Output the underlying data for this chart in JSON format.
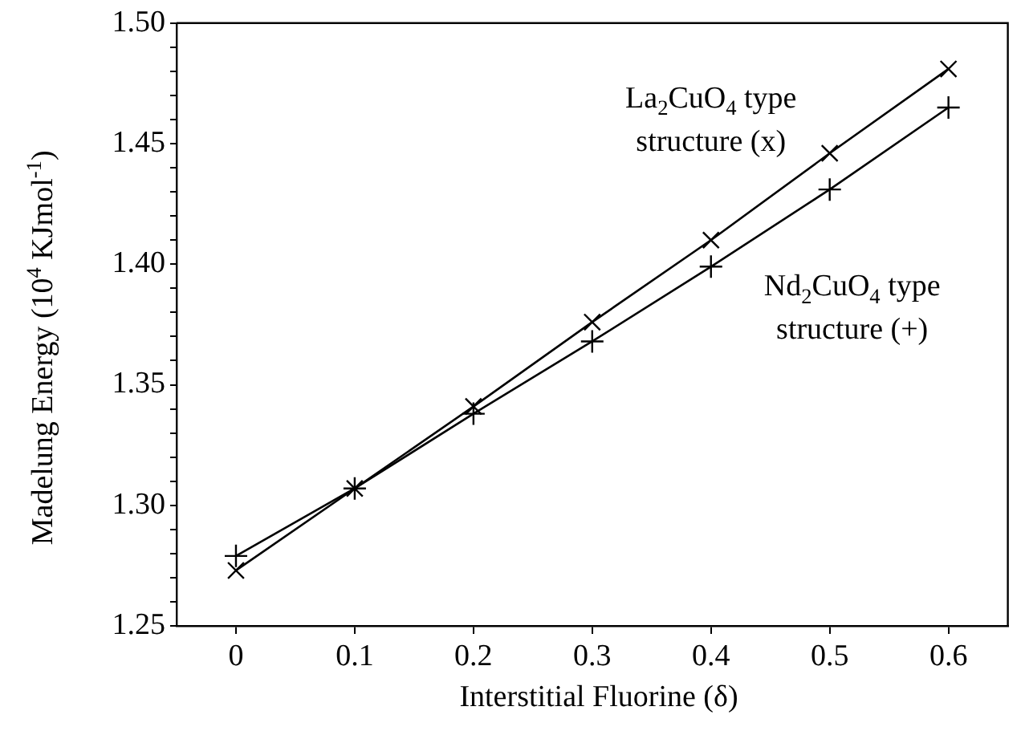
{
  "chart_data": {
    "type": "line",
    "xlabel": "Interstitial Fluorine (δ)",
    "ylabel": "Madelung Energy (10$^{4}$ KJmol$^{-1}$)",
    "x": [
      0,
      0.1,
      0.2,
      0.3,
      0.4,
      0.5,
      0.6
    ],
    "series": [
      {
        "name": "La$_{2}$CuO$_{4}$ type structure (x)",
        "color": "#000000",
        "marker": "cross",
        "values": [
          1.273,
          1.307,
          1.341,
          1.376,
          1.41,
          1.446,
          1.481
        ]
      },
      {
        "name": "Nd$_{2}$CuO$_{4}$ type structure (+)",
        "color": "#000000",
        "marker": "plus",
        "values": [
          1.279,
          1.307,
          1.338,
          1.368,
          1.399,
          1.431,
          1.465
        ]
      }
    ],
    "xlim": [
      -0.05,
      0.65
    ],
    "xticks": [
      0,
      0.1,
      0.2,
      0.3,
      0.4,
      0.5,
      0.6
    ],
    "ylim": [
      1.25,
      1.5
    ],
    "yticks": [
      {
        "value": 1.25,
        "label": "1.25"
      },
      {
        "value": 1.26,
        "label": null
      },
      {
        "value": 1.27,
        "label": null
      },
      {
        "value": 1.28,
        "label": null
      },
      {
        "value": 1.29,
        "label": null
      },
      {
        "value": 1.3,
        "label": "1.30"
      },
      {
        "value": 1.31,
        "label": null
      },
      {
        "value": 1.32,
        "label": null
      },
      {
        "value": 1.33,
        "label": null
      },
      {
        "value": 1.34,
        "label": null
      },
      {
        "value": 1.35,
        "label": "1.35"
      },
      {
        "value": 1.36,
        "label": null
      },
      {
        "value": 1.37,
        "label": null
      },
      {
        "value": 1.38,
        "label": null
      },
      {
        "value": 1.39,
        "label": null
      },
      {
        "value": 1.4,
        "label": "1.40"
      },
      {
        "value": 1.41,
        "label": null
      },
      {
        "value": 1.42,
        "label": null
      },
      {
        "value": 1.43,
        "label": null
      },
      {
        "value": 1.44,
        "label": null
      },
      {
        "value": 1.45,
        "label": "1.45"
      },
      {
        "value": 1.46,
        "label": null
      },
      {
        "value": 1.47,
        "label": null
      },
      {
        "value": 1.48,
        "label": null
      },
      {
        "value": 1.49,
        "label": null
      },
      {
        "value": 1.5,
        "label": "1.50"
      }
    ],
    "grid": false,
    "legend": false,
    "line_style": "solid"
  }
}
